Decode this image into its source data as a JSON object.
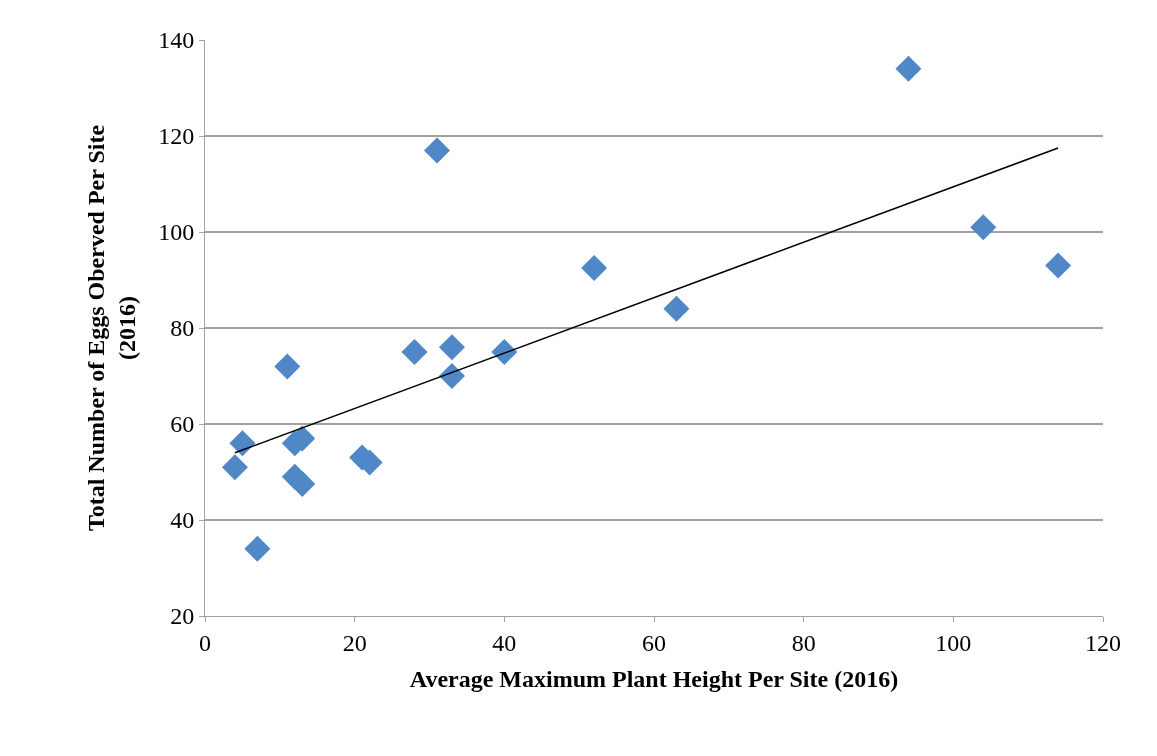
{
  "chart_data": {
    "type": "scatter",
    "xlabel": "Average Maximum Plant Height Per Site (2016)",
    "ylabel": "Total Number of Eggs Oberved Per Site (2016)",
    "series": [
      {
        "color": "#4f87c7",
        "marker": "diamond",
        "x": [
          4,
          5,
          7,
          11,
          12,
          12,
          13,
          13,
          21,
          22,
          28,
          31,
          33,
          33,
          40,
          52,
          63,
          94,
          104,
          114
        ],
        "values": [
          51,
          56,
          34,
          72,
          56,
          49,
          57,
          47.5,
          53,
          52,
          75,
          117,
          76,
          70,
          75,
          92.5,
          84,
          134,
          101,
          93
        ]
      },
      {
        "type": "line",
        "color": "#000000",
        "marker": "none",
        "x": [
          4,
          114
        ],
        "values": [
          54,
          117.5
        ]
      }
    ],
    "xlim": [
      0,
      120
    ],
    "xticks": [
      0,
      20,
      40,
      60,
      80,
      100,
      120
    ],
    "ylim": [
      20,
      140
    ],
    "yticks": [
      20,
      40,
      60,
      80,
      100,
      120,
      140
    ],
    "grid": "y"
  }
}
